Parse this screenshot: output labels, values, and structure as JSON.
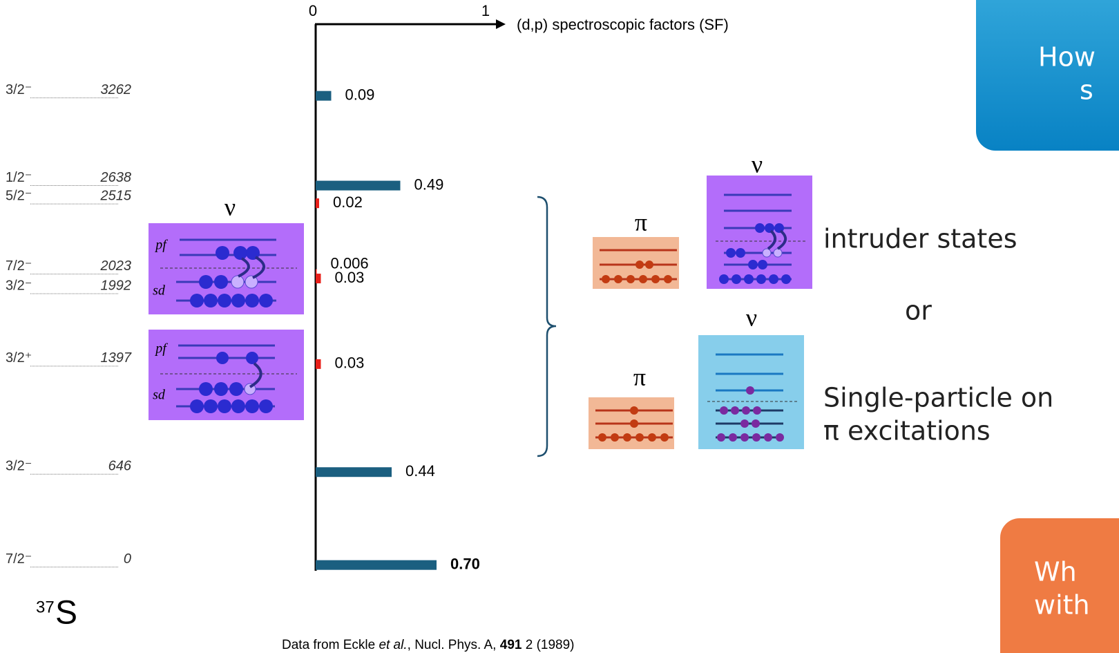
{
  "chart_data": {
    "type": "bar",
    "orientation": "horizontal",
    "x_label": "(d,p) spectroscopic factors (SF)",
    "xlim": [
      0,
      1.1
    ],
    "xticks": [
      0,
      1
    ],
    "ylim": [
      -40,
      3760
    ],
    "spins": [
      "7/2⁻",
      "3/2⁻",
      "3/2⁺",
      "3/2⁻",
      "7/2⁻",
      "5/2⁻",
      "1/2⁻",
      "3/2⁻"
    ],
    "y": [
      0,
      646,
      1397,
      1992,
      2023,
      2515,
      2638,
      3262
    ],
    "values": [
      0.7,
      0.44,
      0.03,
      0.03,
      0.006,
      0.02,
      0.49,
      0.09
    ],
    "value_labels": [
      "0.70",
      "0.44",
      "0.03",
      "0.03",
      "0.006",
      "0.02",
      "0.49",
      "0.09"
    ],
    "colors": [
      "#1b5f80",
      "#1b5f80",
      "#e8201a",
      "#e8201a",
      "#e8201a",
      "#e8201a",
      "#1b5f80",
      "#1b5f80"
    ]
  },
  "slide": {
    "nucleus": {
      "mass": "37",
      "symbol": "S"
    },
    "citation": [
      "Data from Eckle ",
      "et al.",
      ", Nucl. Phys. A, ",
      "491",
      " 2 (1989)"
    ],
    "labels": {
      "nu": "ν",
      "pi": "π",
      "pf": "pf",
      "sd": "sd"
    },
    "intruder": "intruder states",
    "or": "or",
    "single_particle": [
      "Single-particle on",
      "π excitations"
    ],
    "callouts": [
      [
        "How",
        "s"
      ],
      [
        "Wh",
        "with"
      ]
    ]
  }
}
